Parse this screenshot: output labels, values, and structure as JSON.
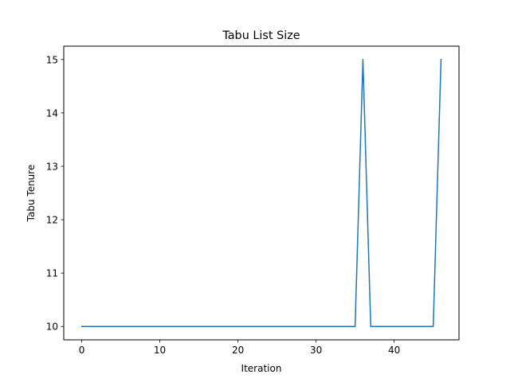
{
  "chart_data": {
    "type": "line",
    "title": "Tabu List Size",
    "xlabel": "Iteration",
    "ylabel": "Tabu Tenure",
    "xlim": [
      -2.3,
      48.3
    ],
    "ylim": [
      9.75,
      15.25
    ],
    "xticks": [
      0,
      10,
      20,
      30,
      40
    ],
    "yticks": [
      10,
      11,
      12,
      13,
      14,
      15
    ],
    "grid": false,
    "series": [
      {
        "color": "#1f77b4",
        "x": [
          0,
          1,
          2,
          3,
          4,
          5,
          6,
          7,
          8,
          9,
          10,
          11,
          12,
          13,
          14,
          15,
          16,
          17,
          18,
          19,
          20,
          21,
          22,
          23,
          24,
          25,
          26,
          27,
          28,
          29,
          30,
          31,
          32,
          33,
          34,
          35,
          36,
          37,
          38,
          39,
          40,
          41,
          42,
          43,
          44,
          45,
          46
        ],
        "y": [
          10,
          10,
          10,
          10,
          10,
          10,
          10,
          10,
          10,
          10,
          10,
          10,
          10,
          10,
          10,
          10,
          10,
          10,
          10,
          10,
          10,
          10,
          10,
          10,
          10,
          10,
          10,
          10,
          10,
          10,
          10,
          10,
          10,
          10,
          10,
          10,
          15,
          10,
          10,
          10,
          10,
          10,
          10,
          10,
          10,
          10,
          15
        ]
      }
    ]
  }
}
